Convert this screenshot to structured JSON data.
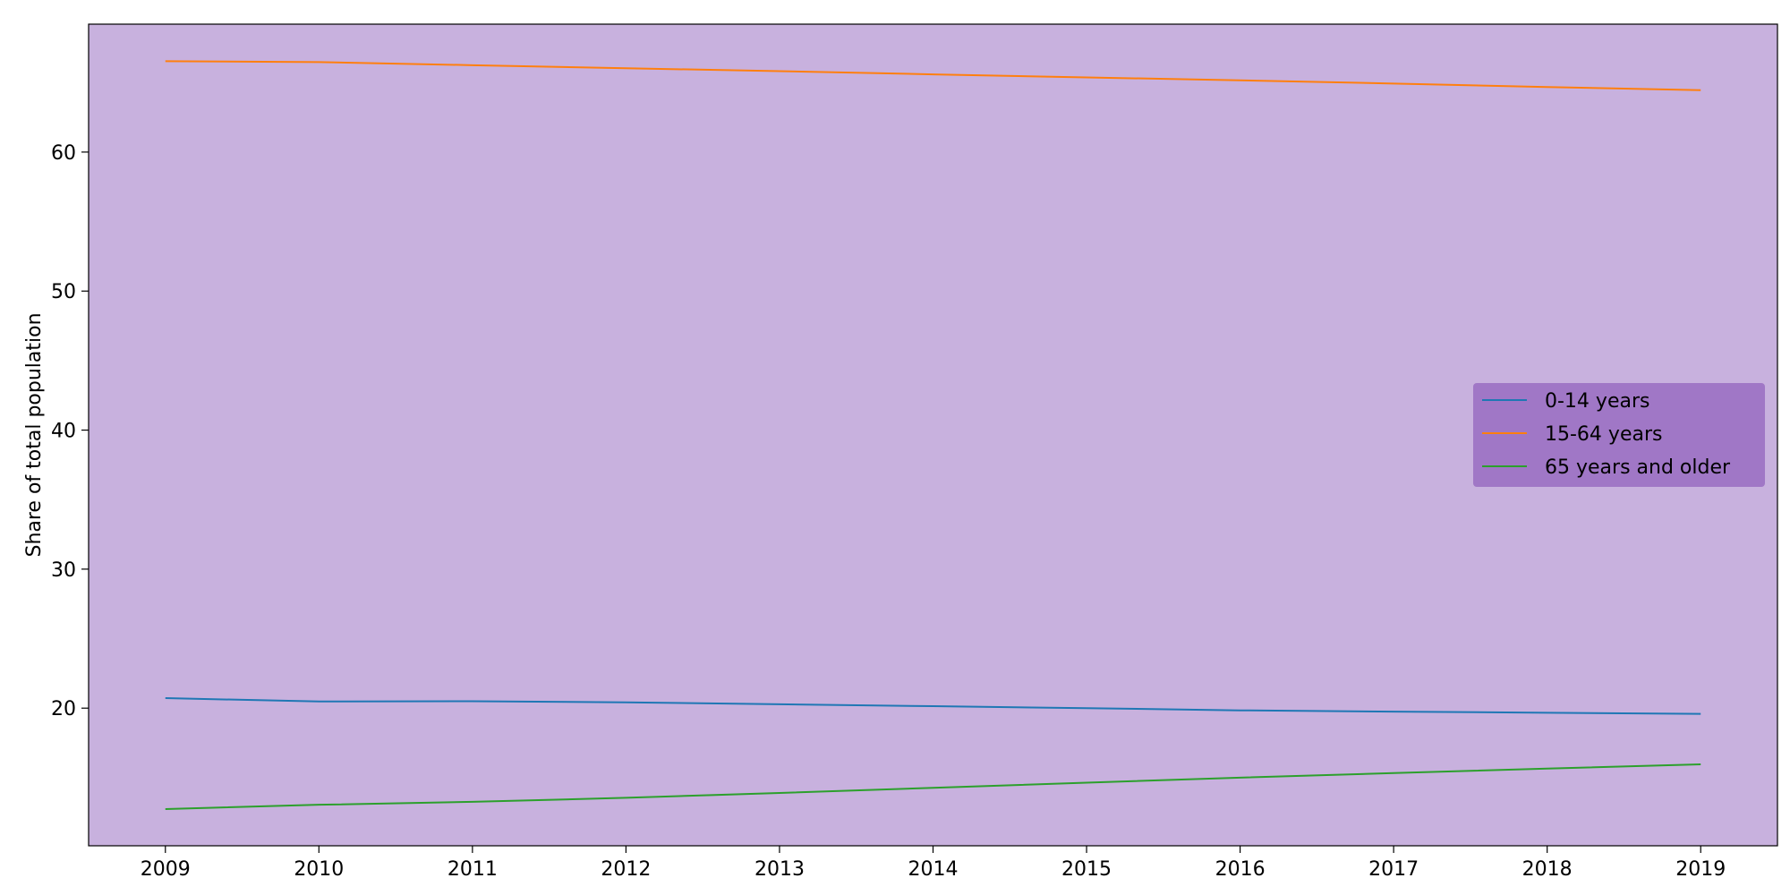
{
  "chart_data": {
    "type": "line",
    "title": "",
    "xlabel": "",
    "ylabel": "Share of total population",
    "x": [
      2009,
      2010,
      2011,
      2012,
      2013,
      2014,
      2015,
      2016,
      2017,
      2018,
      2019
    ],
    "xticks": [
      2009,
      2010,
      2011,
      2012,
      2013,
      2014,
      2015,
      2016,
      2017,
      2018,
      2019
    ],
    "yticks": [
      20,
      30,
      40,
      50,
      60
    ],
    "xlim": [
      2008.5,
      2019.5
    ],
    "ylim": [
      10.1,
      69.2
    ],
    "grid": false,
    "legend_position": "center-right",
    "background_color": "#c8b1de",
    "legend_background": "#a077c6",
    "series": [
      {
        "name": "0-14 years",
        "color": "#1f77b4",
        "values": [
          20.72,
          20.48,
          20.5,
          20.42,
          20.28,
          20.14,
          20.0,
          19.84,
          19.75,
          19.67,
          19.59
        ]
      },
      {
        "name": "15-64 years",
        "color": "#ff7f0e",
        "values": [
          66.54,
          66.47,
          66.25,
          66.03,
          65.82,
          65.59,
          65.37,
          65.16,
          64.93,
          64.68,
          64.45
        ]
      },
      {
        "name": "65 years and older",
        "color": "#2ca02c",
        "values": [
          12.74,
          13.05,
          13.26,
          13.55,
          13.9,
          14.27,
          14.64,
          15.0,
          15.33,
          15.65,
          15.96
        ]
      }
    ]
  }
}
